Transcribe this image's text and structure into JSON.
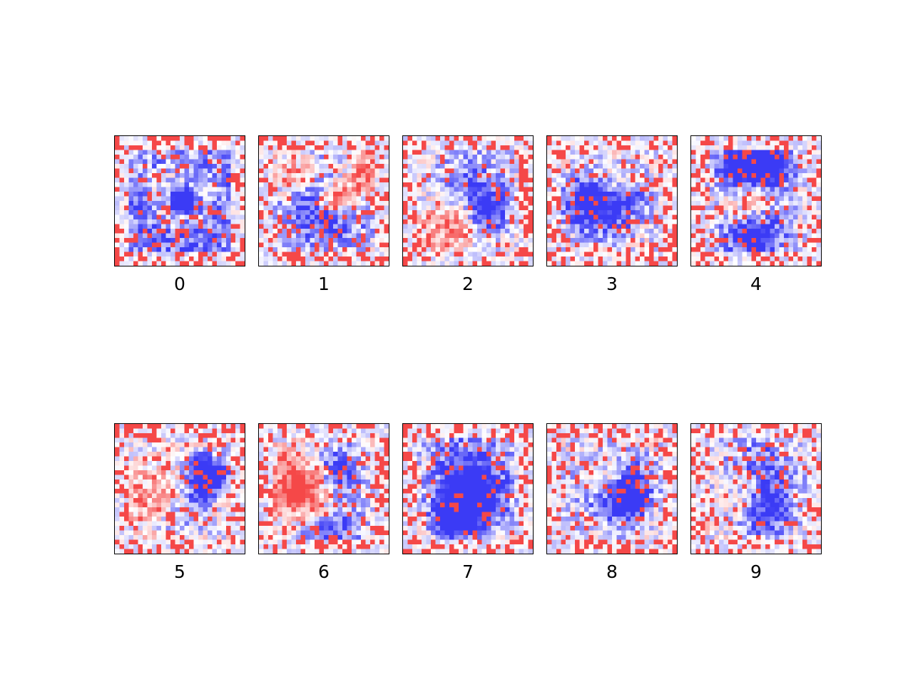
{
  "chart_data": {
    "type": "heatmap",
    "title": "",
    "colormap": "bwr",
    "colors": {
      "negative": "#3b3bf5",
      "neutral": "#ffffff",
      "positive": "#f54848",
      "frame": "#000000"
    },
    "grid_size": [
      28,
      28
    ],
    "grid": false,
    "axes_ticks": false,
    "subplot_layout": [
      2,
      5
    ],
    "panels": [
      {
        "label": "0"
      },
      {
        "label": "1"
      },
      {
        "label": "2"
      },
      {
        "label": "3"
      },
      {
        "label": "4"
      },
      {
        "label": "5"
      },
      {
        "label": "6"
      },
      {
        "label": "7"
      },
      {
        "label": "8"
      },
      {
        "label": "9"
      }
    ]
  }
}
